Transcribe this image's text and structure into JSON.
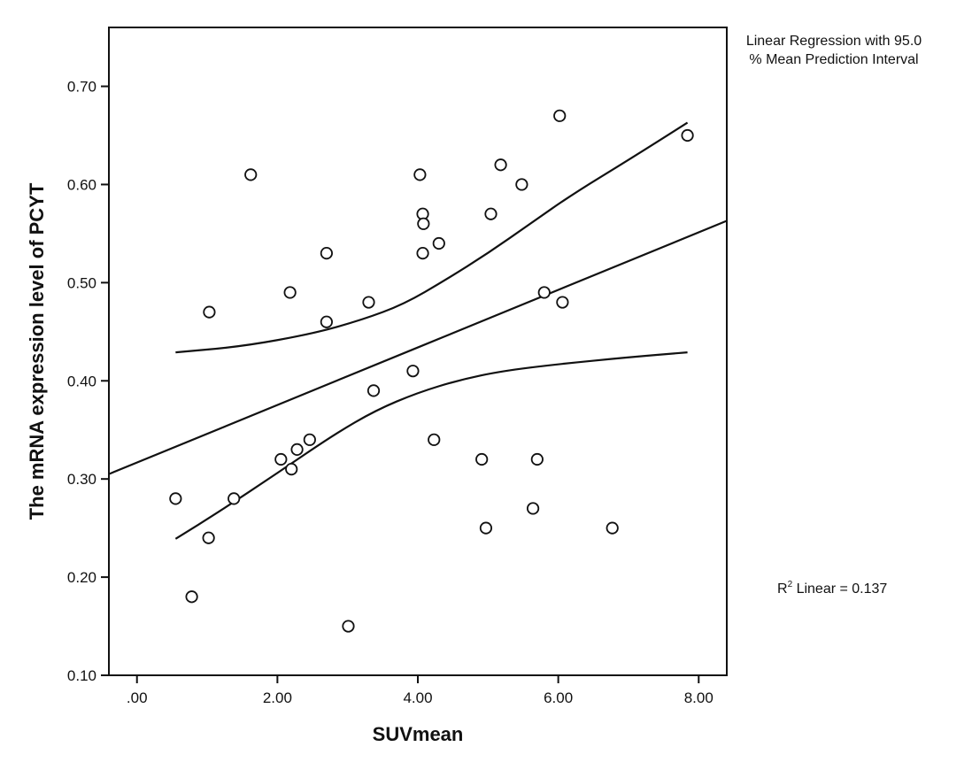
{
  "chart_data": {
    "type": "scatter",
    "title": "",
    "xlabel": "SUVmean",
    "ylabel": "The mRNA expression level of PCYT",
    "xlim": [
      -0.4,
      8.4
    ],
    "ylim": [
      0.1,
      0.76
    ],
    "xticks": [
      0,
      2,
      4,
      6,
      8
    ],
    "xtick_labels": [
      ".00",
      "2.00",
      "4.00",
      "6.00",
      "8.00"
    ],
    "yticks": [
      0.1,
      0.2,
      0.3,
      0.4,
      0.5,
      0.6,
      0.7
    ],
    "ytick_labels": [
      "0.10",
      "0.20",
      "0.30",
      "0.40",
      "0.50",
      "0.60",
      "0.70"
    ],
    "grid": false,
    "points": [
      {
        "x": 0.55,
        "y": 0.28
      },
      {
        "x": 0.78,
        "y": 0.18
      },
      {
        "x": 1.02,
        "y": 0.24
      },
      {
        "x": 1.03,
        "y": 0.47
      },
      {
        "x": 1.38,
        "y": 0.28
      },
      {
        "x": 1.62,
        "y": 0.61
      },
      {
        "x": 2.05,
        "y": 0.32
      },
      {
        "x": 2.18,
        "y": 0.49
      },
      {
        "x": 2.2,
        "y": 0.31
      },
      {
        "x": 2.28,
        "y": 0.33
      },
      {
        "x": 2.46,
        "y": 0.34
      },
      {
        "x": 2.7,
        "y": 0.53
      },
      {
        "x": 2.7,
        "y": 0.46
      },
      {
        "x": 3.01,
        "y": 0.15
      },
      {
        "x": 3.3,
        "y": 0.48
      },
      {
        "x": 3.37,
        "y": 0.39
      },
      {
        "x": 3.93,
        "y": 0.41
      },
      {
        "x": 4.03,
        "y": 0.61
      },
      {
        "x": 4.07,
        "y": 0.57
      },
      {
        "x": 4.08,
        "y": 0.56
      },
      {
        "x": 4.07,
        "y": 0.53
      },
      {
        "x": 4.23,
        "y": 0.34
      },
      {
        "x": 4.3,
        "y": 0.54
      },
      {
        "x": 4.91,
        "y": 0.32
      },
      {
        "x": 4.97,
        "y": 0.25
      },
      {
        "x": 5.04,
        "y": 0.57
      },
      {
        "x": 5.18,
        "y": 0.62
      },
      {
        "x": 5.48,
        "y": 0.6
      },
      {
        "x": 5.64,
        "y": 0.27
      },
      {
        "x": 5.7,
        "y": 0.32
      },
      {
        "x": 5.8,
        "y": 0.49
      },
      {
        "x": 6.02,
        "y": 0.67
      },
      {
        "x": 6.06,
        "y": 0.48
      },
      {
        "x": 6.77,
        "y": 0.25
      },
      {
        "x": 7.84,
        "y": 0.65
      }
    ],
    "fit_line": [
      {
        "x": -0.4,
        "y": 0.305
      },
      {
        "x": 8.4,
        "y": 0.563
      }
    ],
    "upper_interval": [
      {
        "x": 0.55,
        "y": 0.429
      },
      {
        "x": 1.5,
        "y": 0.435
      },
      {
        "x": 2.5,
        "y": 0.448
      },
      {
        "x": 3.2,
        "y": 0.462
      },
      {
        "x": 3.8,
        "y": 0.478
      },
      {
        "x": 4.4,
        "y": 0.503
      },
      {
        "x": 5.0,
        "y": 0.53
      },
      {
        "x": 5.6,
        "y": 0.56
      },
      {
        "x": 6.2,
        "y": 0.59
      },
      {
        "x": 7.0,
        "y": 0.625
      },
      {
        "x": 7.84,
        "y": 0.663
      }
    ],
    "lower_interval": [
      {
        "x": 0.55,
        "y": 0.239
      },
      {
        "x": 1.2,
        "y": 0.268
      },
      {
        "x": 2.0,
        "y": 0.306
      },
      {
        "x": 2.8,
        "y": 0.345
      },
      {
        "x": 3.4,
        "y": 0.37
      },
      {
        "x": 4.0,
        "y": 0.388
      },
      {
        "x": 4.6,
        "y": 0.401
      },
      {
        "x": 5.2,
        "y": 0.41
      },
      {
        "x": 6.0,
        "y": 0.417
      },
      {
        "x": 7.0,
        "y": 0.424
      },
      {
        "x": 7.84,
        "y": 0.429
      }
    ],
    "legend": {
      "line1": "Linear Regression with 95.0",
      "line2": "% Mean Prediction Interval",
      "placement": "top-right"
    },
    "annotations": {
      "r2_prefix": "R",
      "r2_sup": "2",
      "r2_rest": " Linear = 0.137"
    },
    "colors": {
      "line": "#111111",
      "marker_edge": "#111111",
      "marker_fill": "#ffffff",
      "background": "#ffffff"
    }
  }
}
